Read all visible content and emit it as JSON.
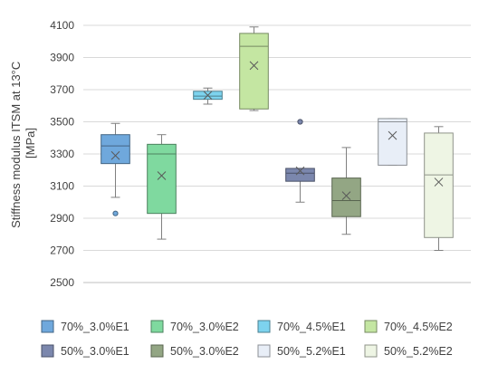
{
  "chart_data": {
    "type": "boxplot",
    "ylabel": "Stiffness modulus ITSM at 13°C [MPa]",
    "ylim": [
      2500,
      4100
    ],
    "yticks": [
      2500,
      2700,
      2900,
      3100,
      3300,
      3500,
      3700,
      3900,
      4100
    ],
    "grid": true,
    "legend_position": "bottom",
    "series": [
      {
        "name": "70%_3.0%E1",
        "color": "#6fa8dc",
        "min": 3030,
        "q1": 3240,
        "median": 3350,
        "q3": 3420,
        "max": 3490,
        "mean": 3290,
        "outliers": [
          2930
        ]
      },
      {
        "name": "70%_3.0%E2",
        "color": "#7fd99f",
        "min": 2770,
        "q1": 2930,
        "median": 3300,
        "q3": 3360,
        "max": 3420,
        "mean": 3165,
        "outliers": []
      },
      {
        "name": "70%_4.5%E1",
        "color": "#7dd3ee",
        "min": 3610,
        "q1": 3640,
        "median": 3660,
        "q3": 3690,
        "max": 3710,
        "mean": 3665,
        "outliers": []
      },
      {
        "name": "70%_4.5%E2",
        "color": "#c4e6a2",
        "min": 3570,
        "q1": 3580,
        "median": 3970,
        "q3": 4050,
        "max": 4090,
        "mean": 3850,
        "outliers": []
      },
      {
        "name": "50%_3.0%E1",
        "color": "#7b87ad",
        "min": 3000,
        "q1": 3130,
        "median": 3180,
        "q3": 3210,
        "max": 3210,
        "mean": 3195,
        "outliers": [
          3500
        ]
      },
      {
        "name": "50%_3.0%E2",
        "color": "#93a684",
        "min": 2800,
        "q1": 2910,
        "median": 3010,
        "q3": 3150,
        "max": 3340,
        "mean": 3040,
        "outliers": []
      },
      {
        "name": "50%_5.2%E1",
        "color": "#e8eef7",
        "min": 3230,
        "q1": 3230,
        "median": 3500,
        "q3": 3520,
        "max": 3520,
        "mean": 3415,
        "outliers": []
      },
      {
        "name": "50%_5.2%E2",
        "color": "#eef5e4",
        "min": 2700,
        "q1": 2780,
        "median": 3170,
        "q3": 3430,
        "max": 3470,
        "mean": 3125,
        "outliers": []
      }
    ]
  }
}
